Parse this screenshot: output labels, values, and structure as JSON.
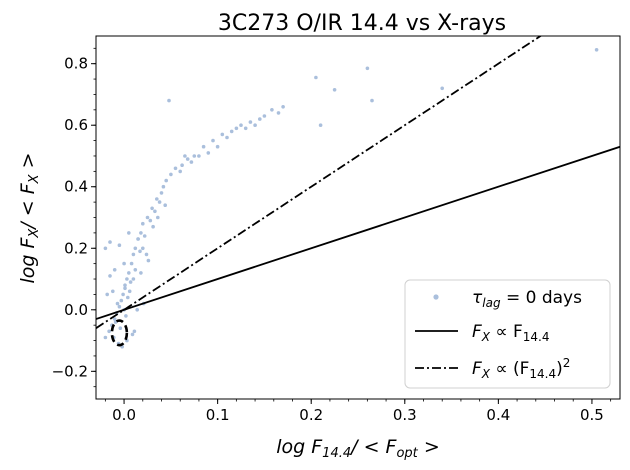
{
  "chart_data": {
    "type": "scatter",
    "title": "3C273    O/IR 14.4 vs X-rays",
    "xlabel_parts": [
      "log F",
      "14.4",
      "/ < F",
      "opt",
      " >"
    ],
    "ylabel_parts": [
      "log F",
      "X",
      "/ < F",
      "X",
      " >"
    ],
    "xlim": [
      -0.03,
      0.53
    ],
    "ylim": [
      -0.29,
      0.89
    ],
    "xticks": [
      {
        "value": 0.0,
        "label": "0.0"
      },
      {
        "value": 0.1,
        "label": "0.1"
      },
      {
        "value": 0.2,
        "label": "0.2"
      },
      {
        "value": 0.3,
        "label": "0.3"
      },
      {
        "value": 0.4,
        "label": "0.4"
      },
      {
        "value": 0.5,
        "label": "0.5"
      }
    ],
    "yticks": [
      {
        "value": -0.2,
        "label": "−0.2"
      },
      {
        "value": 0.0,
        "label": "0.0"
      },
      {
        "value": 0.2,
        "label": "0.2"
      },
      {
        "value": 0.4,
        "label": "0.4"
      },
      {
        "value": 0.6,
        "label": "0.6"
      },
      {
        "value": 0.8,
        "label": "0.8"
      }
    ],
    "legend_placement": "lower right",
    "colors": {
      "points": "#aabfdc",
      "lines": "#000000"
    },
    "series": [
      {
        "kind": "points",
        "legend_main": "τ",
        "legend_sub": "lag",
        "legend_rest": " = 0  days",
        "x": [
          0.505,
          0.34,
          0.26,
          0.265,
          0.225,
          0.205,
          0.21,
          0.17,
          0.165,
          0.15,
          0.14,
          0.13,
          0.12,
          0.11,
          0.1,
          0.09,
          0.08,
          0.072,
          0.065,
          0.06,
          0.05,
          0.045,
          0.04,
          0.035,
          0.03,
          0.025,
          0.02,
          0.018,
          0.015,
          0.012,
          0.01,
          0.008,
          0.005,
          0.003,
          0.001,
          -0.001,
          -0.003,
          -0.005,
          -0.008,
          -0.01,
          -0.013,
          -0.016,
          -0.02,
          0.0,
          0.002,
          -0.004,
          0.004,
          0.007,
          -0.007,
          0.012,
          -0.012,
          0.017,
          -0.015,
          0.022,
          0.028,
          0.033,
          0.038,
          0.042,
          0.055,
          0.062,
          0.068,
          0.075,
          0.085,
          0.095,
          0.105,
          0.115,
          0.125,
          0.135,
          0.145,
          0.158,
          0.048,
          0.02,
          0.01,
          0.0,
          -0.01,
          -0.02,
          0.005,
          0.015,
          -0.005,
          -0.015,
          0.026,
          0.031,
          0.003,
          -0.002,
          0.009,
          -0.009,
          0.014,
          0.006,
          -0.006,
          0.001,
          0.011,
          -0.011,
          0.021,
          0.018,
          -0.018,
          0.024,
          0.036,
          0.044
        ],
        "y": [
          0.845,
          0.72,
          0.785,
          0.68,
          0.715,
          0.755,
          0.6,
          0.66,
          0.64,
          0.63,
          0.6,
          0.59,
          0.59,
          0.56,
          0.53,
          0.51,
          0.5,
          0.48,
          0.5,
          0.45,
          0.44,
          0.42,
          0.38,
          0.36,
          0.33,
          0.3,
          0.28,
          0.25,
          0.23,
          0.2,
          0.18,
          0.15,
          0.12,
          0.1,
          0.07,
          0.05,
          0.03,
          0.01,
          -0.01,
          -0.03,
          -0.05,
          -0.07,
          -0.09,
          0.0,
          -0.02,
          -0.06,
          0.04,
          0.09,
          0.02,
          0.13,
          0.06,
          0.19,
          0.11,
          0.24,
          0.29,
          0.32,
          0.35,
          0.4,
          0.46,
          0.47,
          0.49,
          0.5,
          0.53,
          0.55,
          0.57,
          0.58,
          0.6,
          0.61,
          0.62,
          0.65,
          0.68,
          0.2,
          0.1,
          0.15,
          0.13,
          0.2,
          0.25,
          0.23,
          0.21,
          0.22,
          0.16,
          0.27,
          -0.1,
          -0.12,
          -0.08,
          -0.04,
          0.0,
          0.06,
          -0.11,
          0.08,
          -0.07,
          -0.09,
          0.02,
          0.12,
          0.05,
          0.18,
          0.3,
          0.34
        ]
      },
      {
        "kind": "line",
        "dash": "solid",
        "legend_main": "F",
        "legend_sub": "X",
        "legend_rest": " ∝ F",
        "legend_sub2": "14.4",
        "legend_tail": "",
        "slope": 1,
        "x": [
          -0.03,
          0.53
        ],
        "y": [
          -0.03,
          0.53
        ]
      },
      {
        "kind": "line",
        "dash": "dashdot",
        "legend_main": "F",
        "legend_sub": "X",
        "legend_rest": " ∝ (F",
        "legend_sub2": "14.4",
        "legend_tail": ")",
        "legend_sup": "2",
        "slope": 2,
        "x": [
          -0.03,
          0.45
        ],
        "y": [
          -0.06,
          0.9
        ]
      },
      {
        "kind": "contour",
        "dash": "dashed",
        "center": [
          -0.005,
          -0.075
        ],
        "radius": [
          0.008,
          0.04
        ]
      }
    ]
  }
}
